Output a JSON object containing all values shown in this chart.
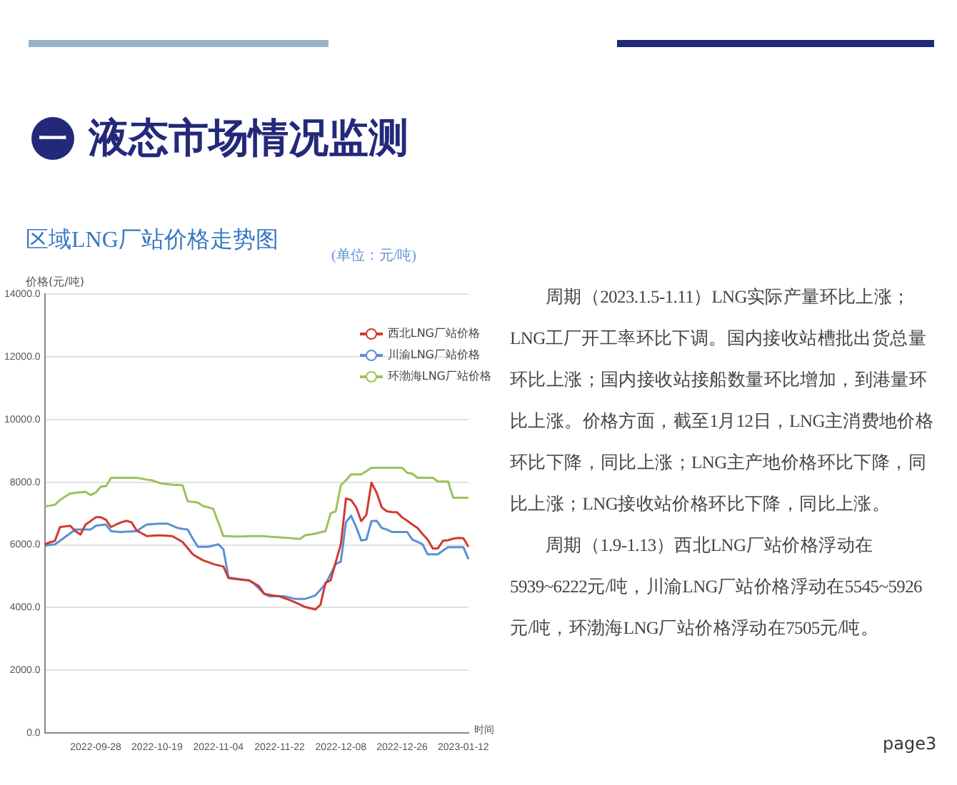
{
  "chart_data": {
    "type": "line",
    "title": "区域LNG厂站价格走势图",
    "subtitle": "(单位：元/吨)",
    "ylabel": "价格(元/吨)",
    "xlabel": "时间",
    "annotations": [
      "一",
      "液态市场情况监测",
      "周期（2023.1.5-1.11）LNG实际产量环比上涨；LNG工厂开工率环比下调。国内接收站槽批出货总量环比上涨；国内接收站接船数量环比增加，到港量环比上涨。价格方面，截至1月12日，LNG主消费地价格环比下降，同比上涨；LNG主产地价格环比下降，同比上涨；LNG接收站价格环比下降，同比上涨。",
      "周期（1.9-1.13）西北LNG厂站价格浮动在5939~6222元/吨，川渝LNG厂站价格浮动在5545~5926元/吨，环渤海LNG厂站价格浮动在7505元/吨。",
      "page3"
    ],
    "categories": [
      null,
      null,
      null,
      null,
      null,
      null,
      null,
      null,
      null,
      null,
      "2022-09-28",
      null,
      null,
      null,
      null,
      null,
      null,
      null,
      null,
      null,
      null,
      null,
      "2022-10-19",
      null,
      null,
      null,
      null,
      null,
      null,
      null,
      null,
      null,
      null,
      null,
      "2022-11-04",
      null,
      null,
      null,
      null,
      null,
      null,
      null,
      null,
      null,
      null,
      null,
      "2022-11-22",
      null,
      null,
      null,
      null,
      null,
      null,
      null,
      null,
      null,
      null,
      null,
      "2022-12-08",
      null,
      null,
      null,
      null,
      null,
      null,
      null,
      null,
      null,
      null,
      null,
      "2022-12-26",
      null,
      null,
      null,
      null,
      null,
      null,
      null,
      null,
      null,
      null,
      null,
      "2023-01-12",
      null
    ],
    "series": [
      {
        "name": "西北LNG厂站价格",
        "color": "#d03a2e",
        "values": [
          6020,
          6080,
          6130,
          6570,
          6590,
          6610,
          6440,
          6330,
          6650,
          6760,
          6880,
          6880,
          6800,
          6570,
          6650,
          6720,
          6770,
          6720,
          6460,
          6370,
          6280,
          6290,
          6300,
          6300,
          6290,
          6280,
          6190,
          6090,
          5900,
          5700,
          5600,
          5510,
          5450,
          5390,
          5350,
          5310,
          4940,
          4920,
          4900,
          4880,
          4870,
          4780,
          4680,
          4440,
          4410,
          4380,
          4360,
          4300,
          4240,
          4170,
          4100,
          4020,
          3980,
          3940,
          4090,
          4790,
          4870,
          5450,
          6020,
          7480,
          7430,
          7200,
          6760,
          6960,
          7980,
          7670,
          7200,
          7070,
          7050,
          7040,
          6880,
          6770,
          6650,
          6540,
          6350,
          6170,
          5890,
          5890,
          6130,
          6150,
          6200,
          6222,
          6210,
          5939
        ]
      },
      {
        "name": "川渝LNG厂站价格",
        "color": "#5b8fd6",
        "values": [
          5970,
          6000,
          6020,
          6130,
          6250,
          6370,
          6490,
          6490,
          6490,
          6490,
          6610,
          6630,
          6650,
          6440,
          6420,
          6410,
          6420,
          6430,
          6440,
          6550,
          6650,
          6660,
          6670,
          6680,
          6680,
          6610,
          6540,
          6510,
          6490,
          6200,
          5940,
          5940,
          5940,
          5980,
          6020,
          5860,
          4960,
          4940,
          4910,
          4890,
          4870,
          4760,
          4600,
          4440,
          4360,
          4360,
          4360,
          4360,
          4320,
          4280,
          4280,
          4280,
          4330,
          4390,
          4570,
          4760,
          5070,
          5390,
          5470,
          6720,
          6930,
          6570,
          6140,
          6170,
          6760,
          6770,
          6540,
          6490,
          6410,
          6410,
          6410,
          6410,
          6170,
          6100,
          6020,
          5700,
          5700,
          5700,
          5820,
          5926,
          5926,
          5926,
          5926,
          5545
        ]
      },
      {
        "name": "环渤海LNG厂站价格",
        "color": "#9cc25a",
        "values": [
          7230,
          7250,
          7280,
          7430,
          7540,
          7640,
          7660,
          7680,
          7690,
          7590,
          7670,
          7860,
          7870,
          8140,
          8140,
          8140,
          8140,
          8140,
          8140,
          8110,
          8080,
          8060,
          8000,
          7950,
          7940,
          7920,
          7910,
          7900,
          7390,
          7370,
          7350,
          7240,
          7200,
          7150,
          6720,
          6280,
          6280,
          6270,
          6270,
          6270,
          6280,
          6280,
          6280,
          6280,
          6260,
          6250,
          6240,
          6230,
          6220,
          6200,
          6190,
          6310,
          6330,
          6360,
          6400,
          6440,
          7010,
          7070,
          7900,
          8060,
          8250,
          8250,
          8250,
          8350,
          8460,
          8460,
          8460,
          8460,
          8460,
          8460,
          8460,
          8300,
          8270,
          8140,
          8140,
          8140,
          8140,
          8020,
          8020,
          8020,
          7505,
          7505,
          7505,
          7505
        ]
      }
    ],
    "ylim": [
      0,
      14000
    ],
    "yticks": [
      {
        "value": 0,
        "label": "0.0"
      },
      {
        "value": 2000,
        "label": "2000.0"
      },
      {
        "value": 4000,
        "label": "4000.0"
      },
      {
        "value": 6000,
        "label": "6000.0"
      },
      {
        "value": 8000,
        "label": "8000.0"
      },
      {
        "value": 10000,
        "label": "10000.0"
      },
      {
        "value": 12000,
        "label": "12000.0"
      },
      {
        "value": 14000,
        "label": "14000.0"
      }
    ],
    "grid": "y",
    "legend": "top right",
    "marker": "none",
    "line_style": "solid"
  }
}
